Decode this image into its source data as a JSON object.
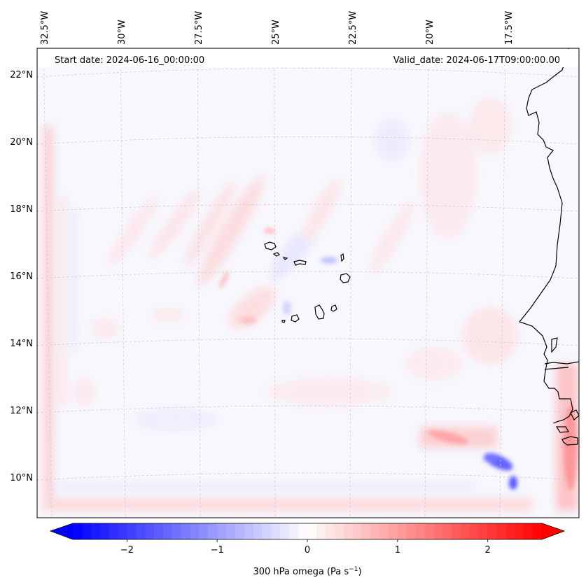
{
  "header": {
    "start_date": "Start date: 2024-06-16_00:00:00",
    "valid_date": "Valid_date: 2024-06-17T09:00:00.00"
  },
  "longitude_labels": [
    "32.5°W",
    "30°W",
    "27.5°W",
    "25°W",
    "22.5°W",
    "20°W",
    "17.5°W"
  ],
  "latitude_labels": [
    "22°N",
    "20°N",
    "18°N",
    "16°N",
    "14°N",
    "12°N",
    "10°N"
  ],
  "colorbar": {
    "label": "300 hPa omega (Pa s",
    "label_sup": "−1",
    "label_end": ")",
    "ticks": [
      "−2",
      "−1",
      "0",
      "1",
      "2"
    ],
    "tick_values": [
      -2,
      -1,
      0,
      1,
      2
    ],
    "range": [
      -2.6,
      2.6
    ],
    "colormap": "bwr",
    "color_min": "#0000ff",
    "color_mid": "#ffffff",
    "color_max": "#ff0000",
    "extend": "both"
  },
  "map": {
    "projection": "Lambert conformal (curved graticule)",
    "grid": "dashed light gray",
    "coastline_color": "#000000",
    "field": "300 hPa omega",
    "extent_lon": [
      -33,
      -15.5
    ],
    "extent_lat": [
      9,
      22.5
    ]
  }
}
